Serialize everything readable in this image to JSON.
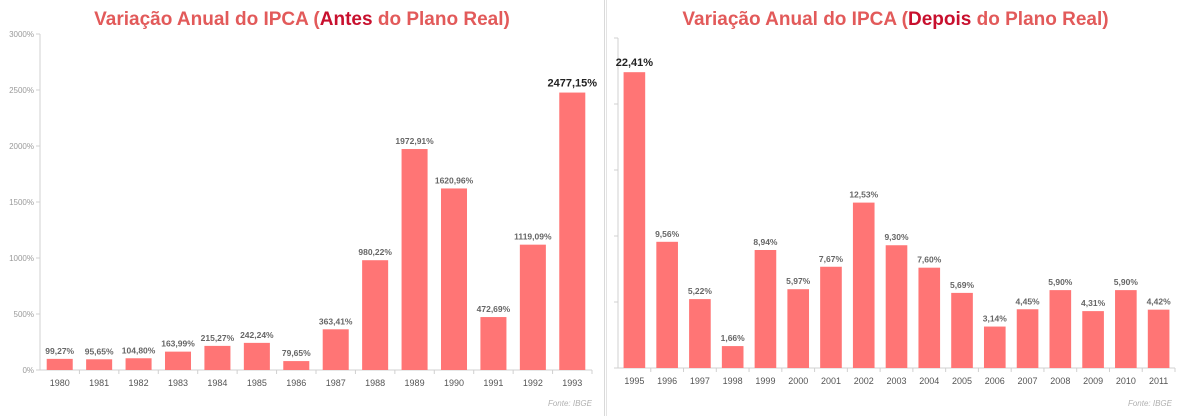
{
  "chart_data": [
    {
      "type": "bar",
      "title_parts": [
        "Variação Anual do IPCA (",
        "Antes",
        " do Plano Real)"
      ],
      "source": "Fonte: IBGE",
      "categories": [
        "1980",
        "1981",
        "1982",
        "1983",
        "1984",
        "1985",
        "1986",
        "1987",
        "1988",
        "1989",
        "1990",
        "1991",
        "1992",
        "1993"
      ],
      "values": [
        99.27,
        95.65,
        104.8,
        163.99,
        215.27,
        242.24,
        79.65,
        363.41,
        980.22,
        1972.91,
        1620.96,
        472.69,
        1119.09,
        2477.15
      ],
      "data_labels": [
        "99,27%",
        "95,65%",
        "104,80%",
        "163,99%",
        "215,27%",
        "242,24%",
        "79,65%",
        "363,41%",
        "980,22%",
        "1972,91%",
        "1620,96%",
        "472,69%",
        "1119,09%",
        "2477,15%"
      ],
      "highlight_index": 13,
      "ylim": [
        0,
        3000
      ],
      "yticks": [
        0,
        500,
        1000,
        1500,
        2000,
        2500,
        3000
      ],
      "ytick_labels": [
        "0%",
        "500%",
        "1000%",
        "1500%",
        "2000%",
        "2500%",
        "3000%"
      ],
      "bar_color": "#ff7575",
      "title_color": "#e25a5a",
      "title_highlight_color": "#c8102e",
      "grid": false
    },
    {
      "type": "bar",
      "title_parts": [
        "Variação Anual do IPCA (",
        "Depois",
        " do Plano Real)"
      ],
      "source": "Fonte: IBGE",
      "categories": [
        "1995",
        "1996",
        "1997",
        "1998",
        "1999",
        "2000",
        "2001",
        "2002",
        "2003",
        "2004",
        "2005",
        "2006",
        "2007",
        "2008",
        "2009",
        "2010",
        "2011"
      ],
      "values": [
        22.41,
        9.56,
        5.22,
        1.66,
        8.94,
        5.97,
        7.67,
        12.53,
        9.3,
        7.6,
        5.69,
        3.14,
        4.45,
        5.9,
        4.31,
        5.9,
        4.42
      ],
      "data_labels": [
        "22,41%",
        "9,56%",
        "5,22%",
        "1,66%",
        "8,94%",
        "5,97%",
        "7,67%",
        "12,53%",
        "9,30%",
        "7,60%",
        "5,69%",
        "3,14%",
        "4,45%",
        "5,90%",
        "4,31%",
        "5,90%",
        "4,42%"
      ],
      "highlight_index": 0,
      "ylim": [
        0,
        25
      ],
      "yticks": [
        0,
        5,
        10,
        15,
        20,
        25
      ],
      "ytick_labels": [],
      "bar_color": "#ff7575",
      "title_color": "#e25a5a",
      "title_highlight_color": "#c8102e",
      "grid": false
    }
  ]
}
